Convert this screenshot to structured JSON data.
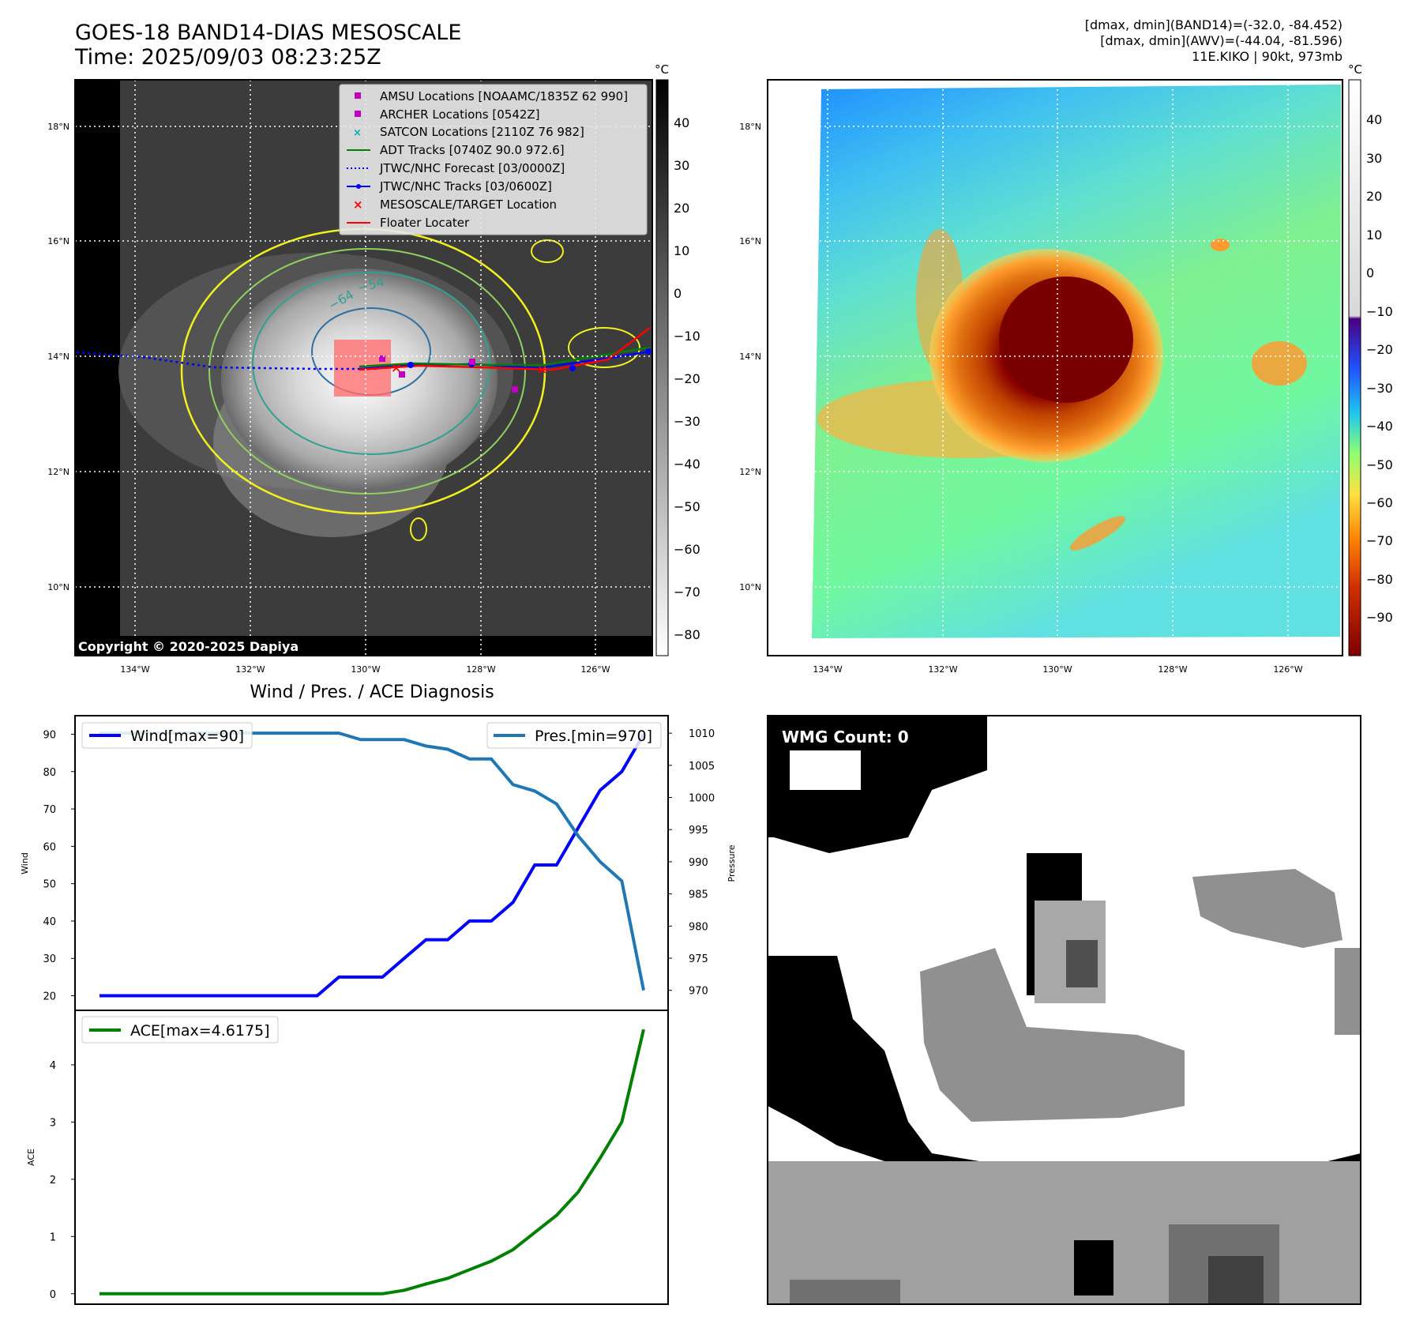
{
  "header": {
    "title_line1": "GOES-18 BAND14-DIAS MESOSCALE",
    "title_line2": "Time: 2025/09/03 08:23:25Z",
    "right_line1": "[dmax, dmin](BAND14)=(-32.0, -84.452)",
    "right_line2": "[dmax, dmin](AWV)=(-44.04, -81.596)",
    "right_line3": "11E.KIKO | 90kt, 973mb"
  },
  "ir_panel": {
    "lat_labels": [
      "18°N",
      "16°N",
      "14°N",
      "12°N",
      "10°N"
    ],
    "lon_labels": [
      "134°W",
      "132°W",
      "130°W",
      "128°W",
      "126°W"
    ],
    "copyright": "Copyright © 2020-2025 Dapiya",
    "colorbar_unit": "°C",
    "colorbar_ticks": [
      "40",
      "30",
      "20",
      "10",
      "0",
      "−10",
      "−20",
      "−30",
      "−40",
      "−50",
      "−60",
      "−70",
      "−80"
    ],
    "contour_label_1": "−64",
    "contour_label_2": "−54",
    "legend": [
      {
        "label": "AMSU Locations [NOAAMC/1835Z 62 990]",
        "color": "#c000c0",
        "marker": "square"
      },
      {
        "label": "ARCHER Locations [0542Z]",
        "color": "#c000c0",
        "marker": "square"
      },
      {
        "label": "SATCON Locations [2110Z 76 982]",
        "color": "#00b0b0",
        "marker": "x"
      },
      {
        "label": "ADT Tracks [0740Z 90.0 972.6]",
        "color": "#008000",
        "marker": "line"
      },
      {
        "label": "JTWC/NHC Forecast [03/0000Z]",
        "color": "#0000ff",
        "marker": "dotted"
      },
      {
        "label": "JTWC/NHC Tracks [03/0600Z]",
        "color": "#0000ff",
        "marker": "line-dot"
      },
      {
        "label": "MESOSCALE/TARGET Location",
        "color": "#ff0000",
        "marker": "x"
      },
      {
        "label": "Floater Locater",
        "color": "#ff0000",
        "marker": "line"
      }
    ]
  },
  "awv_panel": {
    "lat_labels": [
      "18°N",
      "16°N",
      "14°N",
      "12°N",
      "10°N"
    ],
    "lon_labels": [
      "134°W",
      "132°W",
      "130°W",
      "128°W",
      "126°W"
    ],
    "colorbar_unit": "°C",
    "colorbar_ticks": [
      "40",
      "30",
      "20",
      "10",
      "0",
      "−10",
      "−20",
      "−30",
      "−40",
      "−50",
      "−60",
      "−70",
      "−80",
      "−90"
    ]
  },
  "diag_title": "Wind / Pres. / ACE Diagnosis",
  "wmg_label": "WMG Count: 0",
  "chart_data": [
    {
      "type": "line",
      "title": "Wind / Pres. / ACE Diagnosis",
      "ylabel": "Wind",
      "ylabel_right": "Pressure",
      "ylim": [
        18,
        92
      ],
      "ylim_right": [
        968,
        1011
      ],
      "yticks": [
        20,
        30,
        40,
        50,
        60,
        70,
        80,
        90
      ],
      "yticks_right": [
        970,
        975,
        980,
        985,
        990,
        995,
        1000,
        1005,
        1010
      ],
      "x": [
        0,
        1,
        2,
        3,
        4,
        5,
        6,
        7,
        8,
        9,
        10,
        11,
        12,
        13,
        14,
        15,
        16,
        17,
        18,
        19,
        20,
        21,
        22,
        23,
        24,
        25
      ],
      "series": [
        {
          "name": "Wind[max=90]",
          "color": "#0000ff",
          "axis": "left",
          "values": [
            20,
            20,
            20,
            20,
            20,
            20,
            20,
            20,
            20,
            20,
            20,
            25,
            25,
            25,
            30,
            35,
            35,
            40,
            40,
            45,
            55,
            55,
            65,
            75,
            80,
            90
          ]
        },
        {
          "name": "Pres.[min=970]",
          "color": "#1f77b4",
          "axis": "right",
          "values": [
            1010,
            1010,
            1010,
            1010,
            1010,
            1010,
            1010,
            1010,
            1010,
            1010,
            1010,
            1010,
            1009,
            1009,
            1009,
            1008,
            1007.5,
            1006,
            1006,
            1002,
            1001,
            999,
            994,
            990,
            987,
            970
          ]
        }
      ],
      "legend_left": "Wind[max=90]",
      "legend_right": "Pres.[min=970]"
    },
    {
      "type": "line",
      "ylabel": "ACE",
      "ylim": [
        -0.1,
        4.8
      ],
      "yticks": [
        0,
        1,
        2,
        3,
        4
      ],
      "x": [
        0,
        1,
        2,
        3,
        4,
        5,
        6,
        7,
        8,
        9,
        10,
        11,
        12,
        13,
        14,
        15,
        16,
        17,
        18,
        19,
        20,
        21,
        22,
        23,
        24,
        25
      ],
      "series": [
        {
          "name": "ACE[max=4.6175]",
          "color": "#008000",
          "values": [
            0,
            0,
            0,
            0,
            0,
            0,
            0,
            0,
            0,
            0,
            0,
            0,
            0,
            0,
            0.06,
            0.17,
            0.27,
            0.42,
            0.57,
            0.77,
            1.07,
            1.37,
            1.78,
            2.37,
            3.0,
            4.6175
          ]
        }
      ],
      "legend": "ACE[max=4.6175]"
    }
  ]
}
